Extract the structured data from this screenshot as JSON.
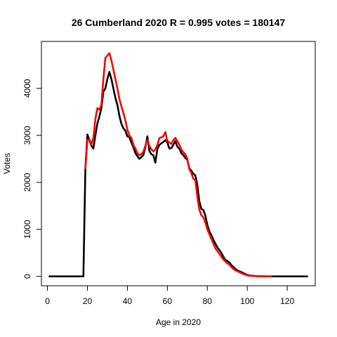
{
  "chart_data": {
    "type": "line",
    "title": "26 Cumberland 2020 R = 0.995 votes = 180147",
    "xlabel": "Age in 2020",
    "ylabel": "Votes",
    "xlim": [
      -3,
      134
    ],
    "ylim": [
      -200,
      5000
    ],
    "x_ticks": [
      0,
      20,
      40,
      60,
      80,
      100,
      120
    ],
    "y_ticks": [
      0,
      1000,
      2000,
      3000,
      4000
    ],
    "grid": false,
    "legend": "none",
    "series": [
      {
        "color": "#000000",
        "points": [
          [
            1,
            0
          ],
          [
            5,
            0
          ],
          [
            10,
            0
          ],
          [
            15,
            0
          ],
          [
            18,
            0
          ],
          [
            19,
            2300
          ],
          [
            20,
            3020
          ],
          [
            21,
            2900
          ],
          [
            22,
            2780
          ],
          [
            23,
            2720
          ],
          [
            24,
            3000
          ],
          [
            25,
            3250
          ],
          [
            26,
            3400
          ],
          [
            27,
            3580
          ],
          [
            28,
            3930
          ],
          [
            29,
            4000
          ],
          [
            30,
            4200
          ],
          [
            31,
            4350
          ],
          [
            32,
            4200
          ],
          [
            33,
            4000
          ],
          [
            34,
            3800
          ],
          [
            35,
            3650
          ],
          [
            36,
            3420
          ],
          [
            37,
            3250
          ],
          [
            38,
            3150
          ],
          [
            39,
            3100
          ],
          [
            40,
            2980
          ],
          [
            41,
            2960
          ],
          [
            42,
            2850
          ],
          [
            43,
            2750
          ],
          [
            44,
            2620
          ],
          [
            45,
            2560
          ],
          [
            46,
            2500
          ],
          [
            47,
            2540
          ],
          [
            48,
            2580
          ],
          [
            49,
            2750
          ],
          [
            50,
            2980
          ],
          [
            51,
            2670
          ],
          [
            52,
            2600
          ],
          [
            53,
            2580
          ],
          [
            54,
            2420
          ],
          [
            55,
            2700
          ],
          [
            56,
            2800
          ],
          [
            57,
            2830
          ],
          [
            58,
            2860
          ],
          [
            59,
            2900
          ],
          [
            60,
            2850
          ],
          [
            61,
            2720
          ],
          [
            62,
            2730
          ],
          [
            63,
            2800
          ],
          [
            64,
            2880
          ],
          [
            65,
            2760
          ],
          [
            66,
            2720
          ],
          [
            67,
            2620
          ],
          [
            68,
            2580
          ],
          [
            69,
            2520
          ],
          [
            70,
            2480
          ],
          [
            71,
            2300
          ],
          [
            72,
            2250
          ],
          [
            73,
            2180
          ],
          [
            74,
            2150
          ],
          [
            75,
            1950
          ],
          [
            76,
            1600
          ],
          [
            77,
            1440
          ],
          [
            78,
            1410
          ],
          [
            79,
            1300
          ],
          [
            80,
            1100
          ],
          [
            81,
            960
          ],
          [
            82,
            880
          ],
          [
            83,
            780
          ],
          [
            84,
            700
          ],
          [
            85,
            620
          ],
          [
            86,
            560
          ],
          [
            87,
            500
          ],
          [
            88,
            420
          ],
          [
            89,
            350
          ],
          [
            90,
            330
          ],
          [
            91,
            300
          ],
          [
            92,
            240
          ],
          [
            93,
            200
          ],
          [
            94,
            160
          ],
          [
            95,
            130
          ],
          [
            96,
            110
          ],
          [
            97,
            90
          ],
          [
            98,
            70
          ],
          [
            99,
            50
          ],
          [
            100,
            30
          ],
          [
            102,
            15
          ],
          [
            105,
            5
          ],
          [
            110,
            0
          ],
          [
            115,
            0
          ],
          [
            120,
            0
          ],
          [
            125,
            0
          ],
          [
            130,
            0
          ]
        ]
      },
      {
        "color": "#ff0000",
        "points": [
          [
            19,
            2300
          ],
          [
            20,
            2900
          ],
          [
            21,
            2920
          ],
          [
            22,
            2800
          ],
          [
            23,
            2950
          ],
          [
            24,
            3350
          ],
          [
            25,
            3580
          ],
          [
            26,
            3550
          ],
          [
            27,
            3650
          ],
          [
            28,
            4200
          ],
          [
            29,
            4650
          ],
          [
            30,
            4700
          ],
          [
            31,
            4750
          ],
          [
            32,
            4600
          ],
          [
            33,
            4400
          ],
          [
            34,
            4200
          ],
          [
            35,
            4000
          ],
          [
            36,
            3780
          ],
          [
            37,
            3620
          ],
          [
            38,
            3480
          ],
          [
            39,
            3320
          ],
          [
            40,
            3120
          ],
          [
            41,
            3000
          ],
          [
            42,
            2950
          ],
          [
            43,
            2800
          ],
          [
            44,
            2720
          ],
          [
            45,
            2620
          ],
          [
            46,
            2580
          ],
          [
            47,
            2600
          ],
          [
            48,
            2650
          ],
          [
            49,
            2780
          ],
          [
            50,
            2900
          ],
          [
            51,
            2780
          ],
          [
            52,
            2700
          ],
          [
            53,
            2660
          ],
          [
            54,
            2700
          ],
          [
            55,
            2800
          ],
          [
            56,
            2940
          ],
          [
            57,
            2960
          ],
          [
            58,
            2980
          ],
          [
            59,
            3070
          ],
          [
            60,
            2880
          ],
          [
            61,
            2850
          ],
          [
            62,
            2820
          ],
          [
            63,
            2900
          ],
          [
            64,
            2950
          ],
          [
            65,
            2880
          ],
          [
            66,
            2800
          ],
          [
            67,
            2700
          ],
          [
            68,
            2640
          ],
          [
            69,
            2600
          ],
          [
            70,
            2500
          ],
          [
            71,
            2280
          ],
          [
            72,
            2200
          ],
          [
            73,
            2080
          ],
          [
            74,
            2050
          ],
          [
            75,
            1700
          ],
          [
            76,
            1420
          ],
          [
            77,
            1300
          ],
          [
            78,
            1260
          ],
          [
            79,
            1150
          ],
          [
            80,
            1000
          ],
          [
            81,
            900
          ],
          [
            82,
            800
          ],
          [
            83,
            700
          ],
          [
            84,
            600
          ],
          [
            85,
            540
          ],
          [
            86,
            480
          ],
          [
            87,
            420
          ],
          [
            88,
            360
          ],
          [
            89,
            320
          ],
          [
            90,
            280
          ],
          [
            91,
            250
          ],
          [
            92,
            200
          ],
          [
            93,
            160
          ],
          [
            94,
            130
          ],
          [
            95,
            110
          ],
          [
            96,
            90
          ],
          [
            97,
            70
          ],
          [
            98,
            50
          ],
          [
            99,
            35
          ],
          [
            100,
            20
          ],
          [
            102,
            10
          ],
          [
            105,
            3
          ],
          [
            110,
            0
          ],
          [
            112,
            0
          ]
        ]
      }
    ]
  }
}
